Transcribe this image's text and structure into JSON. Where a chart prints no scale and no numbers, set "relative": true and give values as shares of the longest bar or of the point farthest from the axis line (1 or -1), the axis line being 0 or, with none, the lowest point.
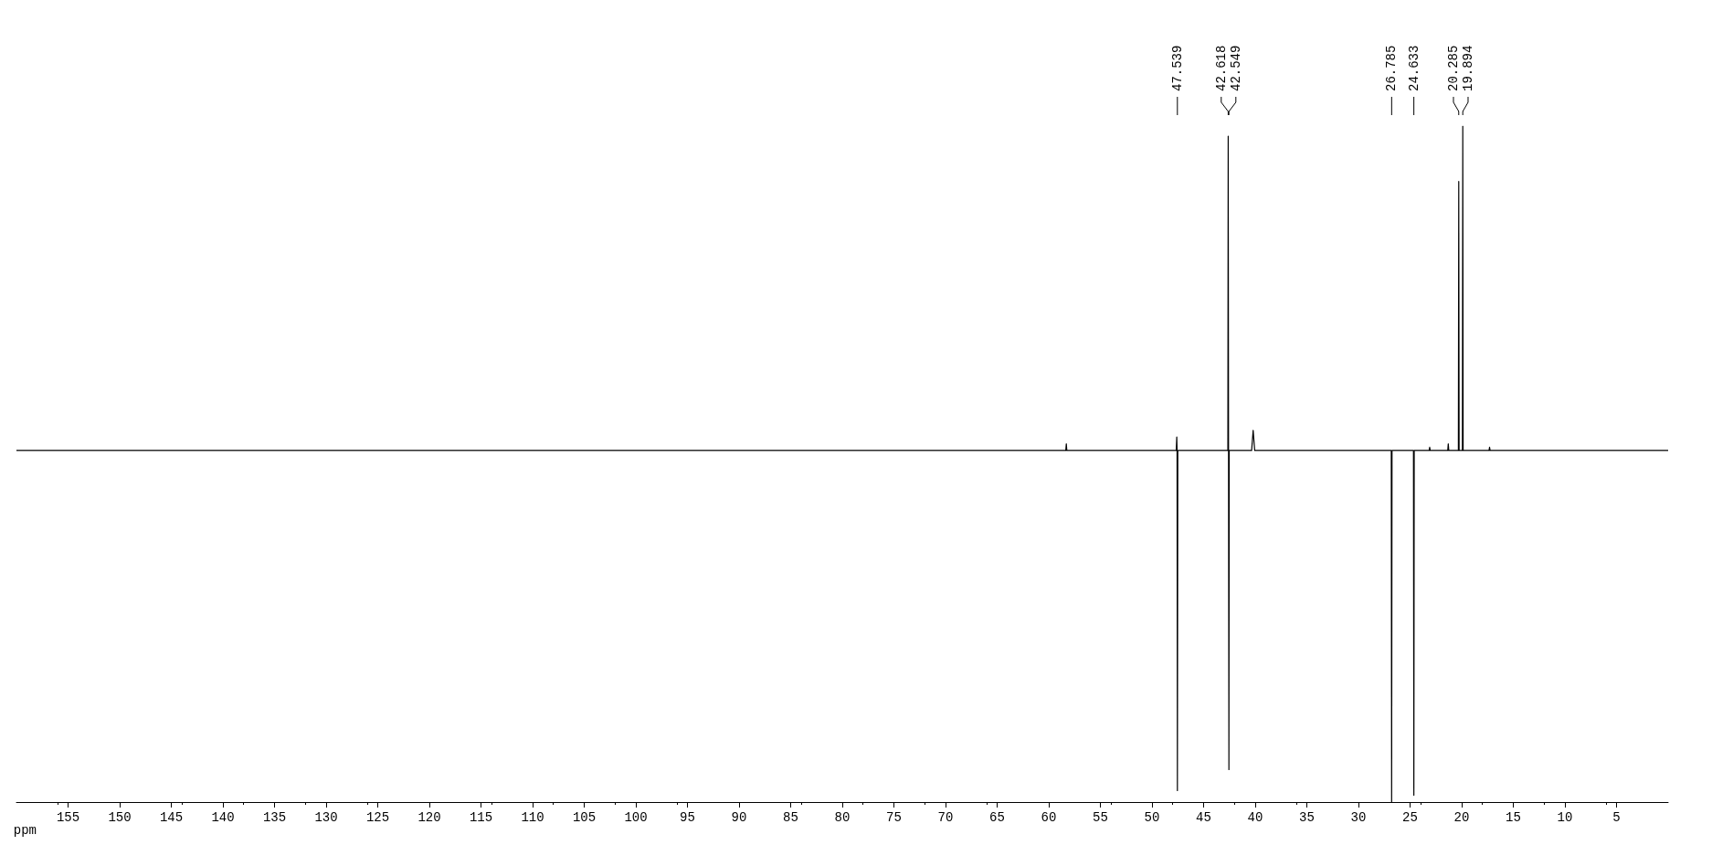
{
  "chart_data": {
    "type": "line",
    "relative": true,
    "xlabel": "ppm",
    "xlim": [
      160,
      0
    ],
    "xticks": [
      155,
      150,
      145,
      140,
      135,
      130,
      125,
      120,
      115,
      110,
      105,
      100,
      95,
      90,
      85,
      80,
      75,
      70,
      65,
      60,
      55,
      50,
      45,
      40,
      35,
      30,
      25,
      20,
      15,
      10,
      5
    ],
    "grid": false,
    "marker": "none",
    "line_style": "solid",
    "series": [
      {
        "color": "#000000",
        "x": [
          160,
          58.35,
          58.3,
          58.25,
          47.65,
          47.6,
          47.57,
          47.539,
          47.5,
          42.65,
          42.618,
          42.585,
          42.549,
          42.52,
          40.35,
          40.2,
          40.05,
          26.82,
          26.785,
          26.75,
          24.67,
          24.633,
          24.6,
          23.15,
          23.1,
          23.05,
          21.35,
          21.3,
          21.25,
          20.32,
          20.285,
          20.25,
          19.93,
          19.894,
          19.86,
          17.35,
          17.3,
          17.25,
          0
        ],
        "values": [
          0.52,
          0.52,
          0.53,
          0.52,
          0.52,
          0.54,
          0.52,
          0.017,
          0.52,
          0.52,
          0.985,
          0.52,
          0.048,
          0.52,
          0.52,
          0.55,
          0.52,
          0.52,
          0,
          0.52,
          0.52,
          0.01,
          0.52,
          0.52,
          0.525,
          0.52,
          0.52,
          0.53,
          0.52,
          0.52,
          0.918,
          0.52,
          0.52,
          1,
          0.52,
          0.52,
          0.525,
          0.52,
          0.52
        ]
      }
    ],
    "annotations": [
      {
        "text": "47.539",
        "x": 47.539
      },
      {
        "text": "42.618",
        "x": 42.618
      },
      {
        "text": "42.549",
        "x": 42.549
      },
      {
        "text": "26.785",
        "x": 26.785
      },
      {
        "text": "24.633",
        "x": 24.633
      },
      {
        "text": "20.285",
        "x": 20.285
      },
      {
        "text": "19.894",
        "x": 19.894
      }
    ]
  }
}
